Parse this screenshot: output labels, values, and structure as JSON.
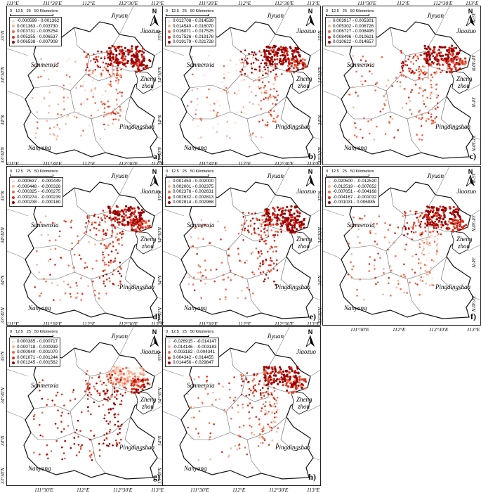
{
  "scale_bar": {
    "ticks": [
      "0",
      "12.5",
      "25",
      "50 Kilometers"
    ]
  },
  "north_label": "N",
  "place_names": {
    "jiyuan": "Jiyuan",
    "jiaozuo": "Jiaozuo",
    "sanmenxia": "Sanmenxia",
    "zheng": "Zheng",
    "zhou": "zhou",
    "pingdingshan": "Pingdingshan",
    "nanyang": "Nanyang"
  },
  "top_axis_labels": [
    "111°E",
    "111°30'E",
    "112°E",
    "112°30'E",
    "113°E"
  ],
  "left_axis_labels": [
    "35°N",
    "34°30'N",
    "34°N",
    "33°30'N"
  ],
  "bottom_axis_labels": [
    "111°30'E",
    "112°E",
    "112°30'E",
    "113°E"
  ],
  "right_axis_labels": [
    "35°N",
    "34°30'N",
    "34°N",
    "33°30'N"
  ],
  "legend_colors": [
    "#fde0d2",
    "#f9b49a",
    "#f26b4b",
    "#d7301f",
    "#990000"
  ],
  "panels": [
    {
      "letter": "a)",
      "legend": [
        "-0.000599 - 0.001362",
        "0.001363 - 0.003730",
        "0.003731 - 0.005254",
        "0.005255 - 0.006537",
        "0.006538 - 0.007908"
      ]
    },
    {
      "letter": "b)",
      "legend": [
        "0.012708 - 0.014539",
        "0.014540 - 0.016070",
        "0.016071 - 0.017525",
        "0.017526 - 0.019178",
        "0.019179 - 0.021728"
      ]
    },
    {
      "letter": "c)",
      "legend": [
        "0.003917 - 0.005301",
        "0.005302 - 0.006726",
        "0.006727 - 0.008495",
        "0.008496 - 0.010621",
        "0.010622 - 0.014657"
      ]
    },
    {
      "letter": "d)",
      "legend": [
        "-0.000637 - -0.000449",
        "-0.000448 - -0.000326",
        "-0.000325 - -0.000275",
        "-0.000274 - -0.000239",
        "-0.000238 - -0.000180"
      ]
    },
    {
      "letter": "e)",
      "legend": [
        "0.001453 - 0.002000",
        "0.002001 - 0.002375",
        "0.002376 - 0.002631",
        "0.002632 - 0.002813",
        "0.002814 - 0.002968"
      ]
    },
    {
      "letter": "f)",
      "legend": [
        "-0.020500 - -0.012520",
        "-0.012519 - -0.007652",
        "-0.007651 - -0.004168",
        "-0.004167 - -0.001032",
        "-0.001031 - 0.006085"
      ]
    },
    {
      "letter": "g)",
      "legend": [
        "0.000385 - 0.000717",
        "0.000718 - 0.000939",
        "0.000940 - 0.001070",
        "0.001071 - 0.001244",
        "0.001245 - 0.001562"
      ]
    },
    {
      "letter": "h)",
      "legend": [
        "-0.026915 - -0.014147",
        "-0.014146 - -0.003183",
        "-0.003182 - 0.004341",
        "0.004342 - 0.014455",
        "0.014456 - 0.029847"
      ]
    }
  ]
}
